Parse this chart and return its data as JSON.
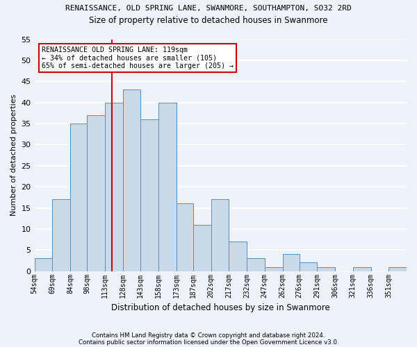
{
  "title1": "RENAISSANCE, OLD SPRING LANE, SWANMORE, SOUTHAMPTON, SO32 2RD",
  "title2": "Size of property relative to detached houses in Swanmore",
  "xlabel": "Distribution of detached houses by size in Swanmore",
  "ylabel": "Number of detached properties",
  "footnote1": "Contains HM Land Registry data © Crown copyright and database right 2024.",
  "footnote2": "Contains public sector information licensed under the Open Government Licence v3.0.",
  "bin_labels": [
    "54sqm",
    "69sqm",
    "84sqm",
    "98sqm",
    "113sqm",
    "128sqm",
    "143sqm",
    "158sqm",
    "173sqm",
    "187sqm",
    "202sqm",
    "217sqm",
    "232sqm",
    "247sqm",
    "262sqm",
    "276sqm",
    "291sqm",
    "306sqm",
    "321sqm",
    "336sqm",
    "351sqm"
  ],
  "values": [
    3,
    17,
    35,
    37,
    40,
    43,
    36,
    40,
    16,
    11,
    17,
    7,
    3,
    1,
    4,
    2,
    1,
    0,
    1,
    0,
    1
  ],
  "bar_color": "#c9d9e8",
  "bar_edge_color": "#5b8db8",
  "vline_x": 119,
  "vline_color": "#cc0000",
  "ylim": [
    0,
    55
  ],
  "yticks": [
    0,
    5,
    10,
    15,
    20,
    25,
    30,
    35,
    40,
    45,
    50,
    55
  ],
  "annotation_text": "RENAISSANCE OLD SPRING LANE: 119sqm\n← 34% of detached houses are smaller (105)\n65% of semi-detached houses are larger (205) →",
  "annotation_box_color": "#ffffff",
  "annotation_box_edge_color": "#cc0000",
  "background_color": "#eef2f9",
  "grid_color": "#ffffff",
  "bin_starts": [
    54,
    69,
    84,
    98,
    113,
    128,
    143,
    158,
    173,
    187,
    202,
    217,
    232,
    247,
    262,
    276,
    291,
    306,
    321,
    336,
    351
  ],
  "xlim_left": 54,
  "xlim_right": 366
}
